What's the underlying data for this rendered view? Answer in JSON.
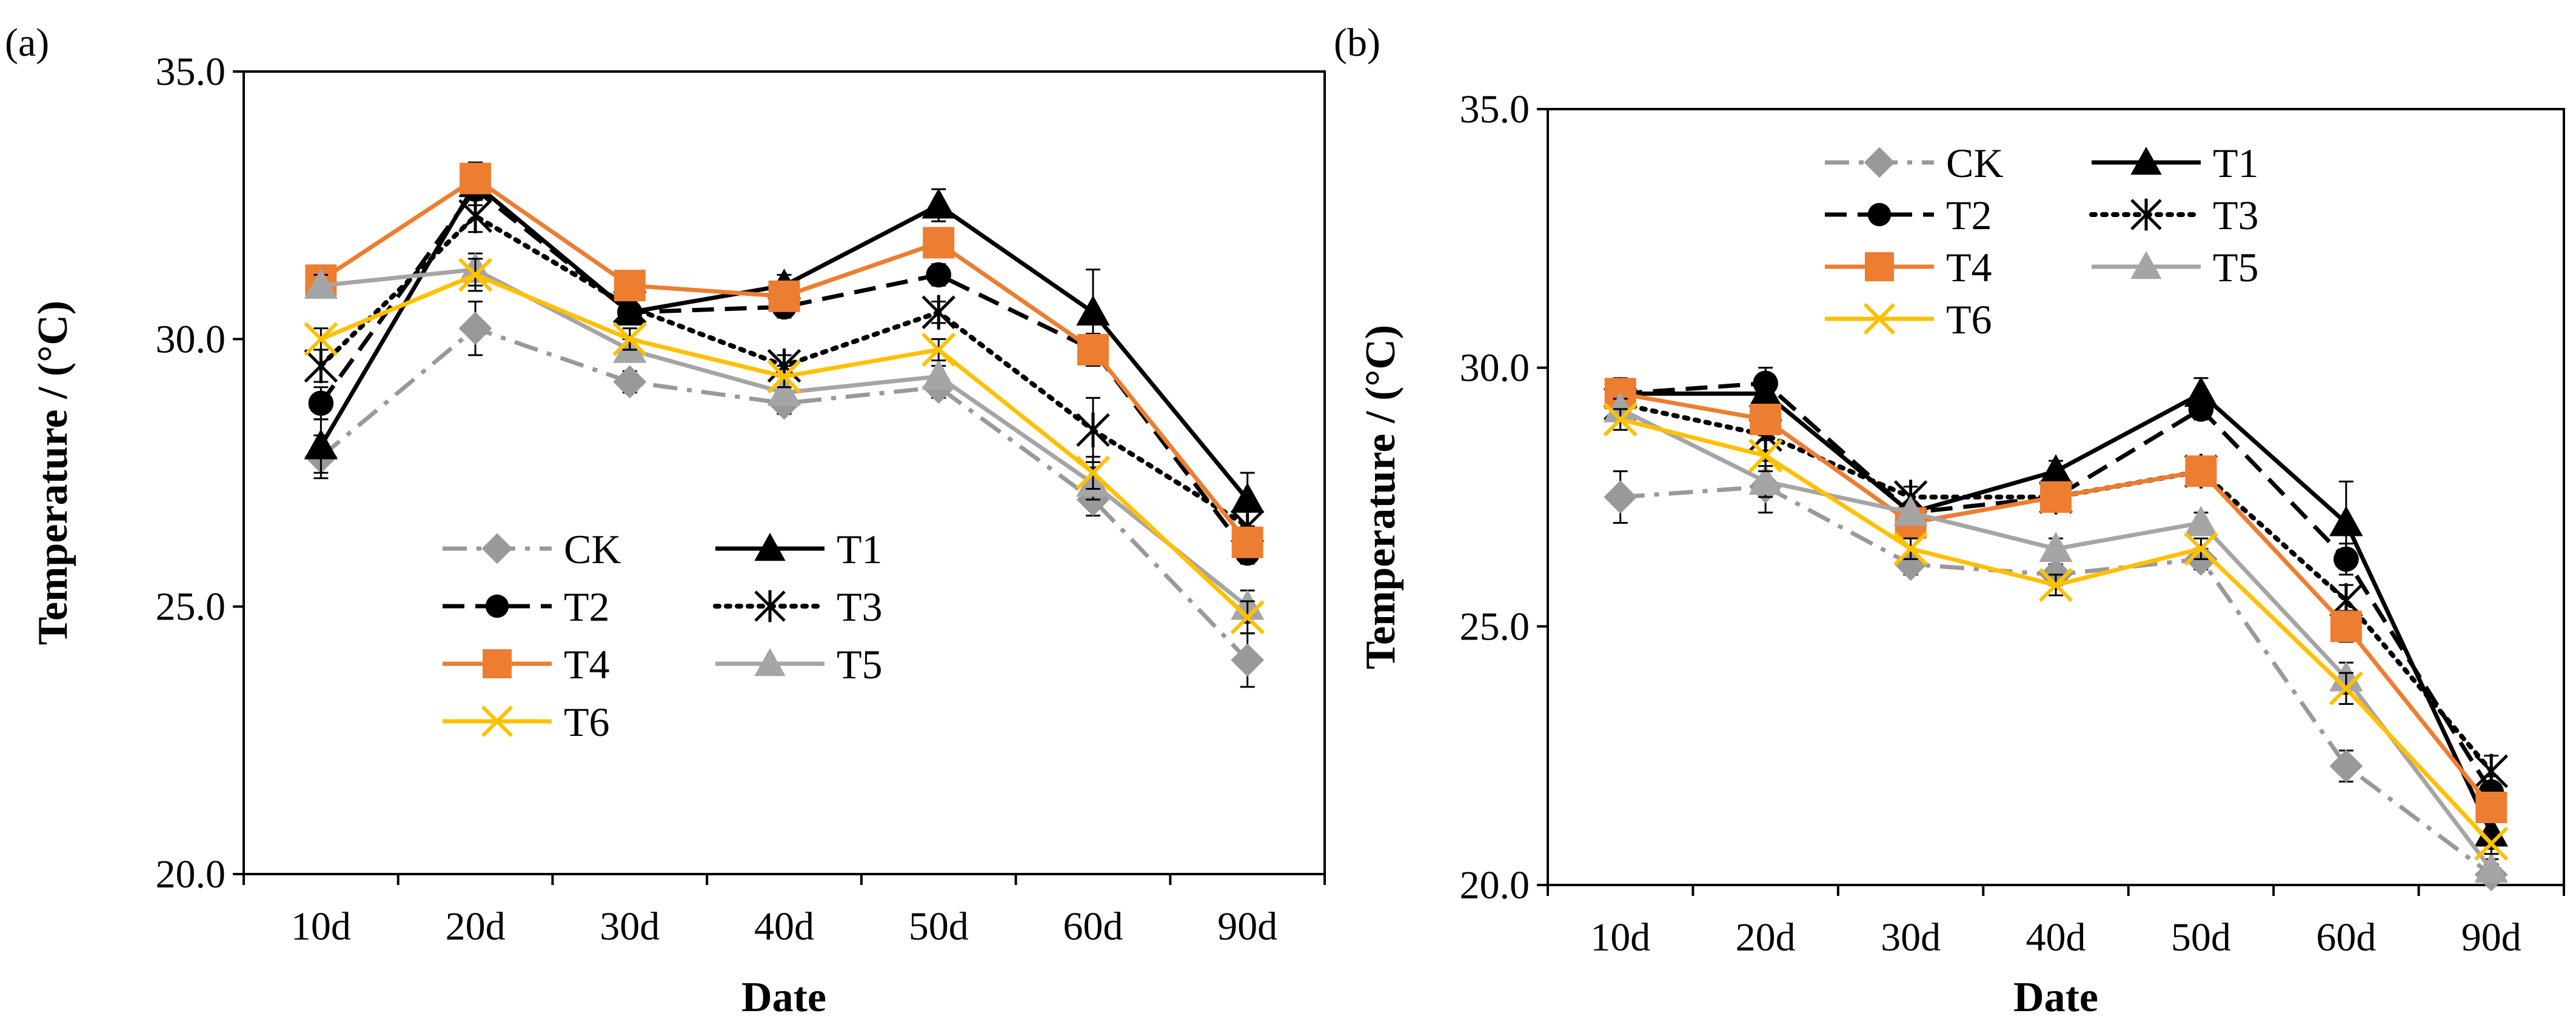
{
  "chart_data": [
    {
      "panel_label": "(a)",
      "type": "line",
      "xlabel": "Date",
      "ylabel": "Temperature / (°C)",
      "categories": [
        "10d",
        "20d",
        "30d",
        "40d",
        "50d",
        "60d",
        "90d"
      ],
      "ylim": [
        20.0,
        35.0
      ],
      "yticks": [
        "20.0",
        "25.0",
        "30.0",
        "35.0"
      ],
      "grid": false,
      "legend_position": "bottom-center",
      "series": [
        {
          "name": "CK",
          "values": [
            27.8,
            30.2,
            29.2,
            28.8,
            29.1,
            27.0,
            24.0
          ],
          "error": [
            0.4,
            0.5,
            0.2,
            0.2,
            0.2,
            0.3,
            0.5
          ],
          "color": "#999999",
          "dash": "dash-dot",
          "marker": "diamond"
        },
        {
          "name": "T1",
          "values": [
            28.0,
            32.9,
            30.5,
            31.0,
            32.5,
            30.5,
            27.0
          ],
          "error": [
            0.5,
            0.3,
            0.2,
            0.2,
            0.3,
            0.8,
            0.5
          ],
          "color": "#000000",
          "dash": "solid",
          "marker": "triangle"
        },
        {
          "name": "T2",
          "values": [
            28.8,
            32.8,
            30.5,
            30.6,
            31.2,
            29.8,
            26.0
          ],
          "error": [
            0.3,
            0.3,
            0.2,
            0.2,
            0.2,
            0.3,
            0.2
          ],
          "color": "#000000",
          "dash": "dash",
          "marker": "circle"
        },
        {
          "name": "T3",
          "values": [
            29.5,
            32.3,
            30.6,
            29.5,
            30.5,
            28.3,
            26.5
          ],
          "error": [
            0.3,
            0.3,
            0.2,
            0.2,
            0.2,
            0.6,
            0.3
          ],
          "color": "#000000",
          "dash": "dot",
          "marker": "asterisk"
        },
        {
          "name": "T4",
          "values": [
            31.1,
            33.0,
            31.0,
            30.8,
            31.8,
            29.8,
            26.2
          ],
          "error": [
            0.2,
            0.3,
            0.2,
            0.2,
            0.2,
            0.3,
            0.3
          ],
          "color": "#ED7D31",
          "dash": "solid",
          "marker": "square"
        },
        {
          "name": "T5",
          "values": [
            31.0,
            31.3,
            29.8,
            29.0,
            29.3,
            27.3,
            25.0
          ],
          "error": [
            0.2,
            0.3,
            0.2,
            0.2,
            0.2,
            0.3,
            0.3
          ],
          "color": "#A5A5A5",
          "dash": "solid",
          "marker": "triangle"
        },
        {
          "name": "T6",
          "values": [
            30.0,
            31.2,
            30.0,
            29.3,
            29.8,
            27.5,
            24.8
          ],
          "error": [
            0.2,
            0.3,
            0.2,
            0.2,
            0.2,
            0.3,
            0.3
          ],
          "color": "#FFC000",
          "dash": "solid",
          "marker": "x"
        }
      ]
    },
    {
      "panel_label": "(b)",
      "type": "line",
      "xlabel": "Date",
      "ylabel": "Temperature / (°C)",
      "categories": [
        "10d",
        "20d",
        "30d",
        "40d",
        "50d",
        "60d",
        "90d"
      ],
      "ylim": [
        20.0,
        35.0
      ],
      "yticks": [
        "20.0",
        "25.0",
        "30.0",
        "35.0"
      ],
      "grid": false,
      "legend_position": "top-left",
      "series": [
        {
          "name": "CK",
          "values": [
            27.5,
            27.7,
            26.2,
            26.0,
            26.3,
            22.3,
            20.2
          ],
          "error": [
            0.5,
            0.5,
            0.2,
            0.2,
            0.2,
            0.3,
            0.2
          ],
          "color": "#999999",
          "dash": "dash-dot",
          "marker": "diamond"
        },
        {
          "name": "T1",
          "values": [
            29.5,
            29.5,
            27.2,
            28.0,
            29.5,
            27.0,
            21.0
          ],
          "error": [
            0.3,
            0.3,
            0.2,
            0.2,
            0.3,
            0.8,
            0.3
          ],
          "color": "#000000",
          "dash": "solid",
          "marker": "triangle"
        },
        {
          "name": "T2",
          "values": [
            29.5,
            29.7,
            27.2,
            27.5,
            29.2,
            26.3,
            21.8
          ],
          "error": [
            0.2,
            0.3,
            0.2,
            0.2,
            0.2,
            0.3,
            0.3
          ],
          "color": "#000000",
          "dash": "dash",
          "marker": "circle"
        },
        {
          "name": "T3",
          "values": [
            29.3,
            28.7,
            27.5,
            27.5,
            28.0,
            25.5,
            22.2
          ],
          "error": [
            0.2,
            0.3,
            0.2,
            0.2,
            0.2,
            0.3,
            0.3
          ],
          "color": "#000000",
          "dash": "dot",
          "marker": "asterisk"
        },
        {
          "name": "T4",
          "values": [
            29.5,
            29.0,
            27.0,
            27.5,
            28.0,
            25.0,
            21.5
          ],
          "error": [
            0.2,
            0.3,
            0.2,
            0.2,
            0.2,
            0.3,
            0.2
          ],
          "color": "#ED7D31",
          "dash": "solid",
          "marker": "square"
        },
        {
          "name": "T5",
          "values": [
            29.2,
            27.8,
            27.2,
            26.5,
            27.0,
            24.0,
            20.3
          ],
          "error": [
            0.2,
            0.3,
            0.2,
            0.2,
            0.2,
            0.3,
            0.2
          ],
          "color": "#A5A5A5",
          "dash": "solid",
          "marker": "triangle"
        },
        {
          "name": "T6",
          "values": [
            29.0,
            28.3,
            26.5,
            25.8,
            26.5,
            23.8,
            20.8
          ],
          "error": [
            0.2,
            0.3,
            0.2,
            0.2,
            0.2,
            0.3,
            0.2
          ],
          "color": "#FFC000",
          "dash": "solid",
          "marker": "x"
        }
      ]
    }
  ]
}
